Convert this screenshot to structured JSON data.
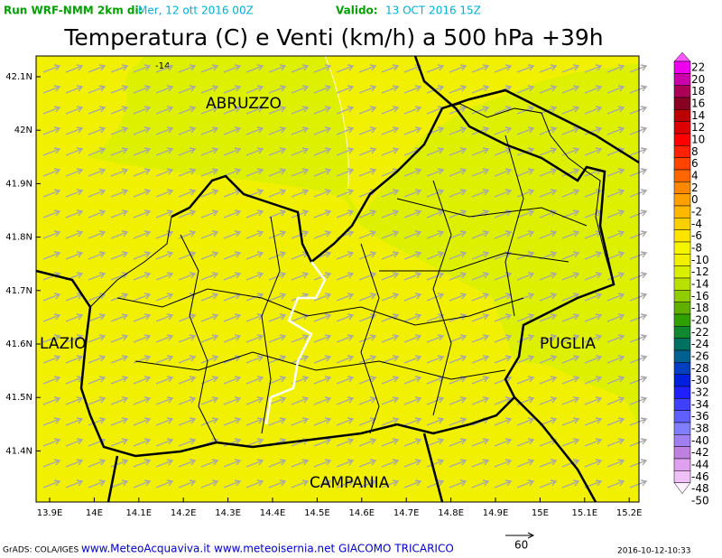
{
  "header": {
    "run": "Run WRF-NMM 2km di:",
    "run_date": "Mer, 12 ott 2016 00Z",
    "valid_label": "Valido:",
    "valid_date": "13 OCT 2016 15Z"
  },
  "title": "Temperatura (C) e Venti (km/h) a 500 hPa +39h",
  "map": {
    "lat_labels": [
      "42.1N",
      "42N",
      "41.9N",
      "41.8N",
      "41.7N",
      "41.6N",
      "41.5N",
      "41.4N"
    ],
    "lon_labels": [
      "13.9E",
      "14E",
      "14.1E",
      "14.2E",
      "14.3E",
      "14.4E",
      "14.5E",
      "14.6E",
      "14.7E",
      "14.8E",
      "14.9E",
      "15E",
      "15.1E",
      "15.2E"
    ],
    "regions": [
      "ABRUZZO",
      "LAZIO",
      "PUGLIA",
      "CAMPANIA"
    ],
    "contour_label": "-14"
  },
  "colorbar": {
    "labels": [
      22,
      20,
      18,
      16,
      14,
      12,
      10,
      8,
      6,
      4,
      2,
      0,
      -2,
      -4,
      -6,
      -8,
      -10,
      -12,
      -14,
      -16,
      -18,
      -20,
      -22,
      -24,
      -26,
      -28,
      -30,
      -32,
      -34,
      -36,
      -38,
      -40,
      -42,
      -44,
      -46,
      -48,
      -50
    ],
    "colors": [
      "#ff55ff",
      "#ee00ee",
      "#cc00aa",
      "#aa0055",
      "#880022",
      "#bb0000",
      "#dd0000",
      "#ff0000",
      "#ff2200",
      "#ff4400",
      "#ff6600",
      "#ff8800",
      "#ffa000",
      "#ffb800",
      "#ffd000",
      "#ffe400",
      "#f5f500",
      "#f0f000",
      "#d8f000",
      "#b8e000",
      "#90cc00",
      "#60b000",
      "#30a000",
      "#108830",
      "#007060",
      "#006090",
      "#0040c0",
      "#0020e0",
      "#2020ff",
      "#4040ff",
      "#6060ff",
      "#8080ff",
      "#a080f0",
      "#c080e0",
      "#e0a0f0",
      "#f0c0f8",
      "#fff0ff"
    ]
  },
  "footer": {
    "credit": "GrADS: COLA/IGES",
    "sites": "www.MeteoAcquaviva.it www.meteoisernia.net GIACOMO TRICARICO",
    "vector_scale": "60",
    "timestamp": "2016-10-12-10:33"
  }
}
